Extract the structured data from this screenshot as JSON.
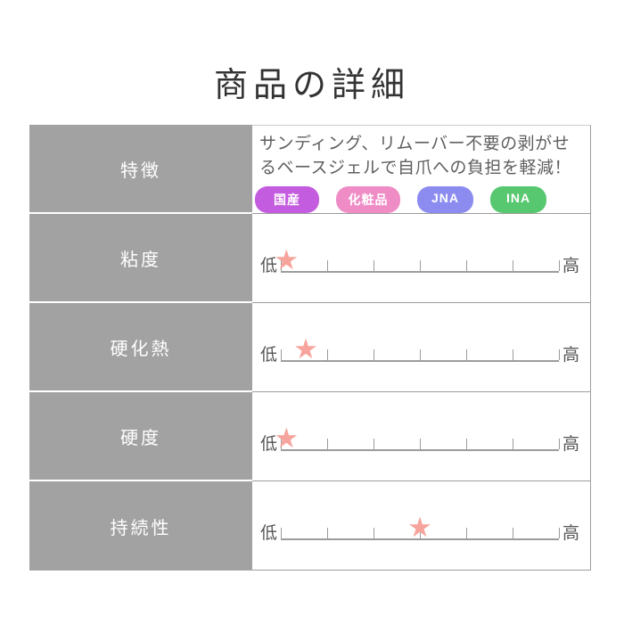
{
  "title": "商品の詳細",
  "scale": {
    "segments": 6,
    "star_color": "#f7a49d",
    "star_icon": "★",
    "line_color": "#9c9c9c"
  },
  "colors": {
    "header_column_bg": "#a2a2a2",
    "header_text": "#ffffff",
    "body_text": "#5f5f5f"
  },
  "table": {
    "rows": [
      {
        "label": "特徴",
        "text": "サンディング、リムーバー不要の剥がせるベースジェルで自爪への負担を軽減！",
        "badges": [
          {
            "label": "国産",
            "color": "#c45ce0"
          },
          {
            "label": "化粧品",
            "color": "#ef8cc6"
          },
          {
            "label": "JNA",
            "color": "#8c8cf0"
          },
          {
            "label": "INA",
            "color": "#58c870"
          }
        ]
      },
      {
        "label": "粘度",
        "low_label": "低",
        "high_label": "高",
        "value": 0.02
      },
      {
        "label": "硬化熱",
        "low_label": "低",
        "high_label": "高",
        "value": 0.09
      },
      {
        "label": "硬度",
        "low_label": "低",
        "high_label": "高",
        "value": 0.02
      },
      {
        "label": "持続性",
        "low_label": "低",
        "high_label": "高",
        "value": 0.5
      }
    ]
  }
}
